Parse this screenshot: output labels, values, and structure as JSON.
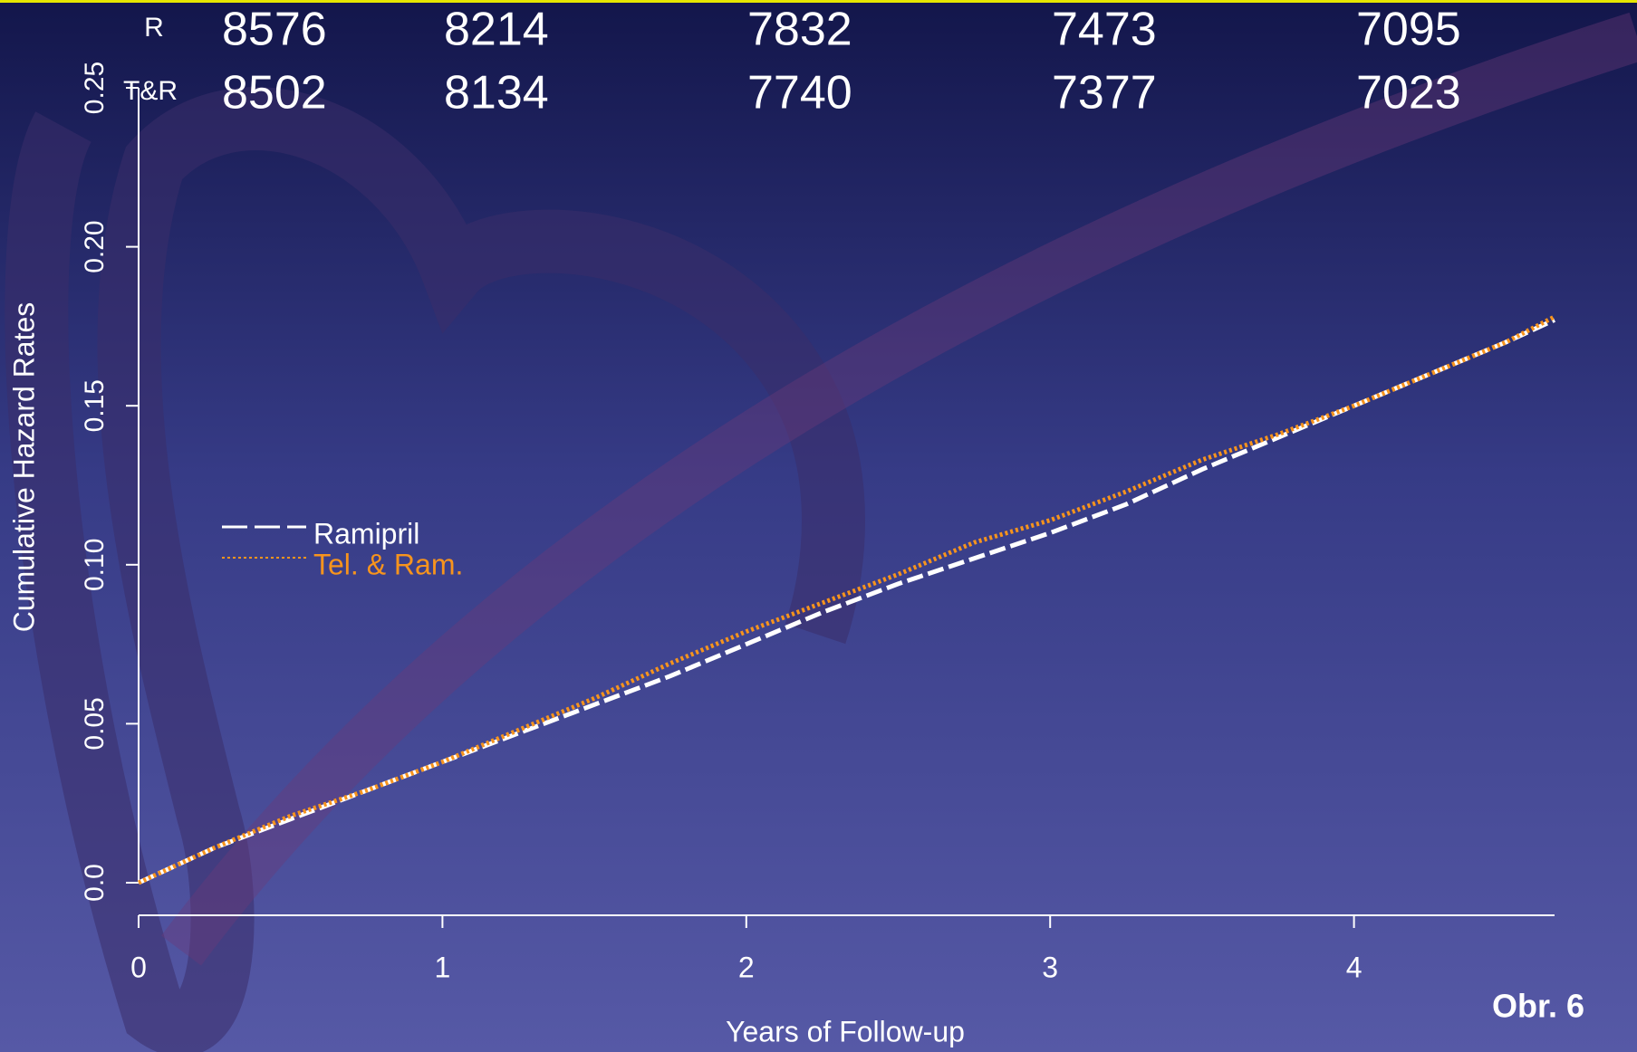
{
  "chart_data": {
    "type": "line",
    "x_label": "Years of Follow-up",
    "y_label": "Cumulative Hazard Rates",
    "annotation": "Obr. 6",
    "xlim": [
      0,
      4.66
    ],
    "ylim": [
      0,
      0.25
    ],
    "xticks": [
      0,
      1,
      2,
      3,
      4
    ],
    "yticks": [
      {
        "value": 0,
        "label": "0.0"
      },
      {
        "value": 0.05,
        "label": "0.05"
      },
      {
        "value": 0.1,
        "label": "0.10"
      },
      {
        "value": 0.15,
        "label": "0.15"
      },
      {
        "value": 0.2,
        "label": "0.20"
      },
      {
        "value": 0.25,
        "label": "0.25"
      }
    ],
    "x": [
      0,
      0.25,
      0.5,
      0.75,
      1,
      1.25,
      1.5,
      1.75,
      2,
      2.25,
      2.5,
      2.75,
      3,
      3.25,
      3.5,
      3.75,
      4,
      4.25,
      4.5,
      4.66
    ],
    "series": [
      {
        "name": "Ramipril",
        "color": "#ffffff",
        "dash": "dashed",
        "values": [
          0,
          0.011,
          0.02,
          0.029,
          0.038,
          0.047,
          0.056,
          0.065,
          0.075,
          0.085,
          0.094,
          0.102,
          0.11,
          0.119,
          0.13,
          0.14,
          0.15,
          0.16,
          0.17,
          0.177
        ]
      },
      {
        "name": "Tel. & Ram.",
        "color": "#f7941d",
        "dash": "dotted",
        "values": [
          0,
          0.011,
          0.021,
          0.029,
          0.038,
          0.048,
          0.058,
          0.069,
          0.079,
          0.088,
          0.097,
          0.107,
          0.114,
          0.123,
          0.133,
          0.141,
          0.15,
          0.16,
          0.17,
          0.178
        ]
      }
    ],
    "at_risk": [
      {
        "label": "R",
        "values": [
          "8576",
          "8214",
          "7832",
          "7473",
          "7095"
        ]
      },
      {
        "label": "T&R",
        "values": [
          "8502",
          "8134",
          "7740",
          "7377",
          "7023"
        ]
      }
    ]
  }
}
